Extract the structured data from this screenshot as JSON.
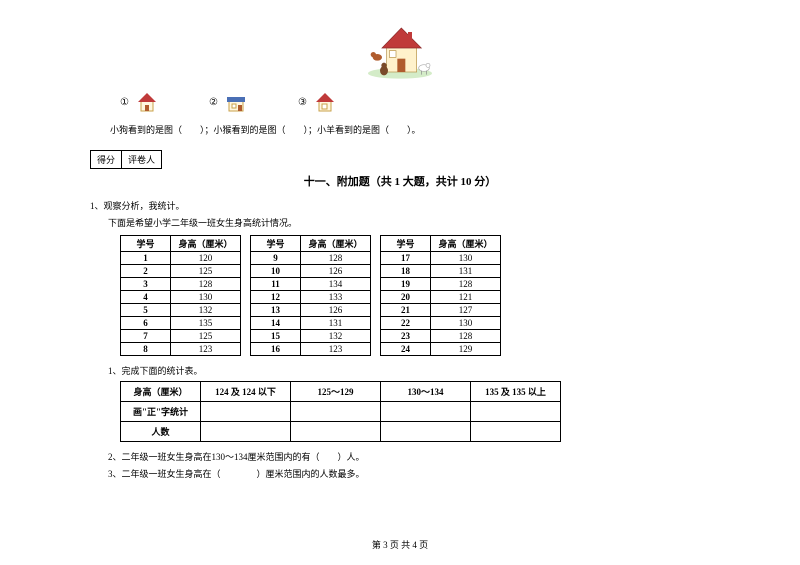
{
  "scene": {
    "house_roof": "#c03a3a",
    "house_wall": "#fff2cc",
    "brown": "#b05c2e",
    "cream": "#f5e6c8",
    "grass": "#7fb96e"
  },
  "options": {
    "o1": "①",
    "o2": "②",
    "o3": "③",
    "h1_roof": "#c03a3a",
    "h1_wall": "#fff7e0",
    "h2_roof": "#4a6fb5",
    "h2_wall": "#fff7e0",
    "h3_roof": "#c03a3a",
    "h3_wall": "#fff7e0"
  },
  "q_line": "小狗看到的是图（　　）；小猴看到的是图（　　）；小羊看到的是图（　　）。",
  "score": {
    "c1": "得分",
    "c2": "评卷人"
  },
  "section_title": "十一、附加题（共 1 大题，共计 10 分）",
  "q1_num": "1、观察分析，我统计。",
  "q1_text": "下面是希望小学二年级一班女生身高统计情况。",
  "table": {
    "h_id": "学号",
    "h_val": "身高（厘米）",
    "rows": [
      [
        "1",
        "120",
        "9",
        "128",
        "17",
        "130"
      ],
      [
        "2",
        "125",
        "10",
        "126",
        "18",
        "131"
      ],
      [
        "3",
        "128",
        "11",
        "134",
        "19",
        "128"
      ],
      [
        "4",
        "130",
        "12",
        "133",
        "20",
        "121"
      ],
      [
        "5",
        "132",
        "13",
        "126",
        "21",
        "127"
      ],
      [
        "6",
        "135",
        "14",
        "131",
        "22",
        "130"
      ],
      [
        "7",
        "125",
        "15",
        "132",
        "23",
        "128"
      ],
      [
        "8",
        "123",
        "16",
        "123",
        "24",
        "129"
      ]
    ]
  },
  "sub1": "1、完成下面的统计表。",
  "summary": {
    "row1_label": "身高（厘米）",
    "col1": "124 及 124 以下",
    "col2": "125～129",
    "col3": "130～134",
    "col4": "135 及 135 以上",
    "row2_label": "画\"正\"字统计",
    "row3_label": "人数"
  },
  "sub2": "2、二年级一班女生身高在130～134厘米范围内的有（　　）人。",
  "sub3": "3、二年级一班女生身高在（　　　　）厘米范围内的人数最多。",
  "footer": "第 3 页  共 4 页"
}
